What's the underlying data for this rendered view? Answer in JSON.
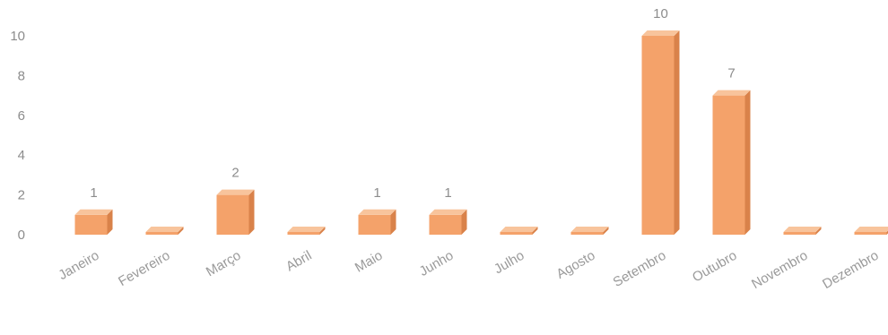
{
  "chart_data": {
    "type": "bar",
    "categories": [
      "Janeiro",
      "Fevereiro",
      "Março",
      "Abril",
      "Maio",
      "Junho",
      "Julho",
      "Agosto",
      "Setembro",
      "Outubro",
      "Novembro",
      "Dezembro"
    ],
    "values": [
      1,
      0,
      2,
      0,
      1,
      1,
      0,
      0,
      10,
      7,
      0,
      0
    ],
    "data_labels": [
      "1",
      "",
      "2",
      "",
      "1",
      "1",
      "",
      "",
      "10",
      "7",
      "",
      ""
    ],
    "y_ticks": [
      "0",
      "2",
      "4",
      "6",
      "8",
      "10"
    ],
    "ylim": [
      0,
      10
    ],
    "title": "",
    "xlabel": "",
    "ylabel": "",
    "grid": false,
    "bar_color": "#f4a26a",
    "bar_side_color": "#d9824a",
    "bar_top_color": "#f8c49c"
  }
}
